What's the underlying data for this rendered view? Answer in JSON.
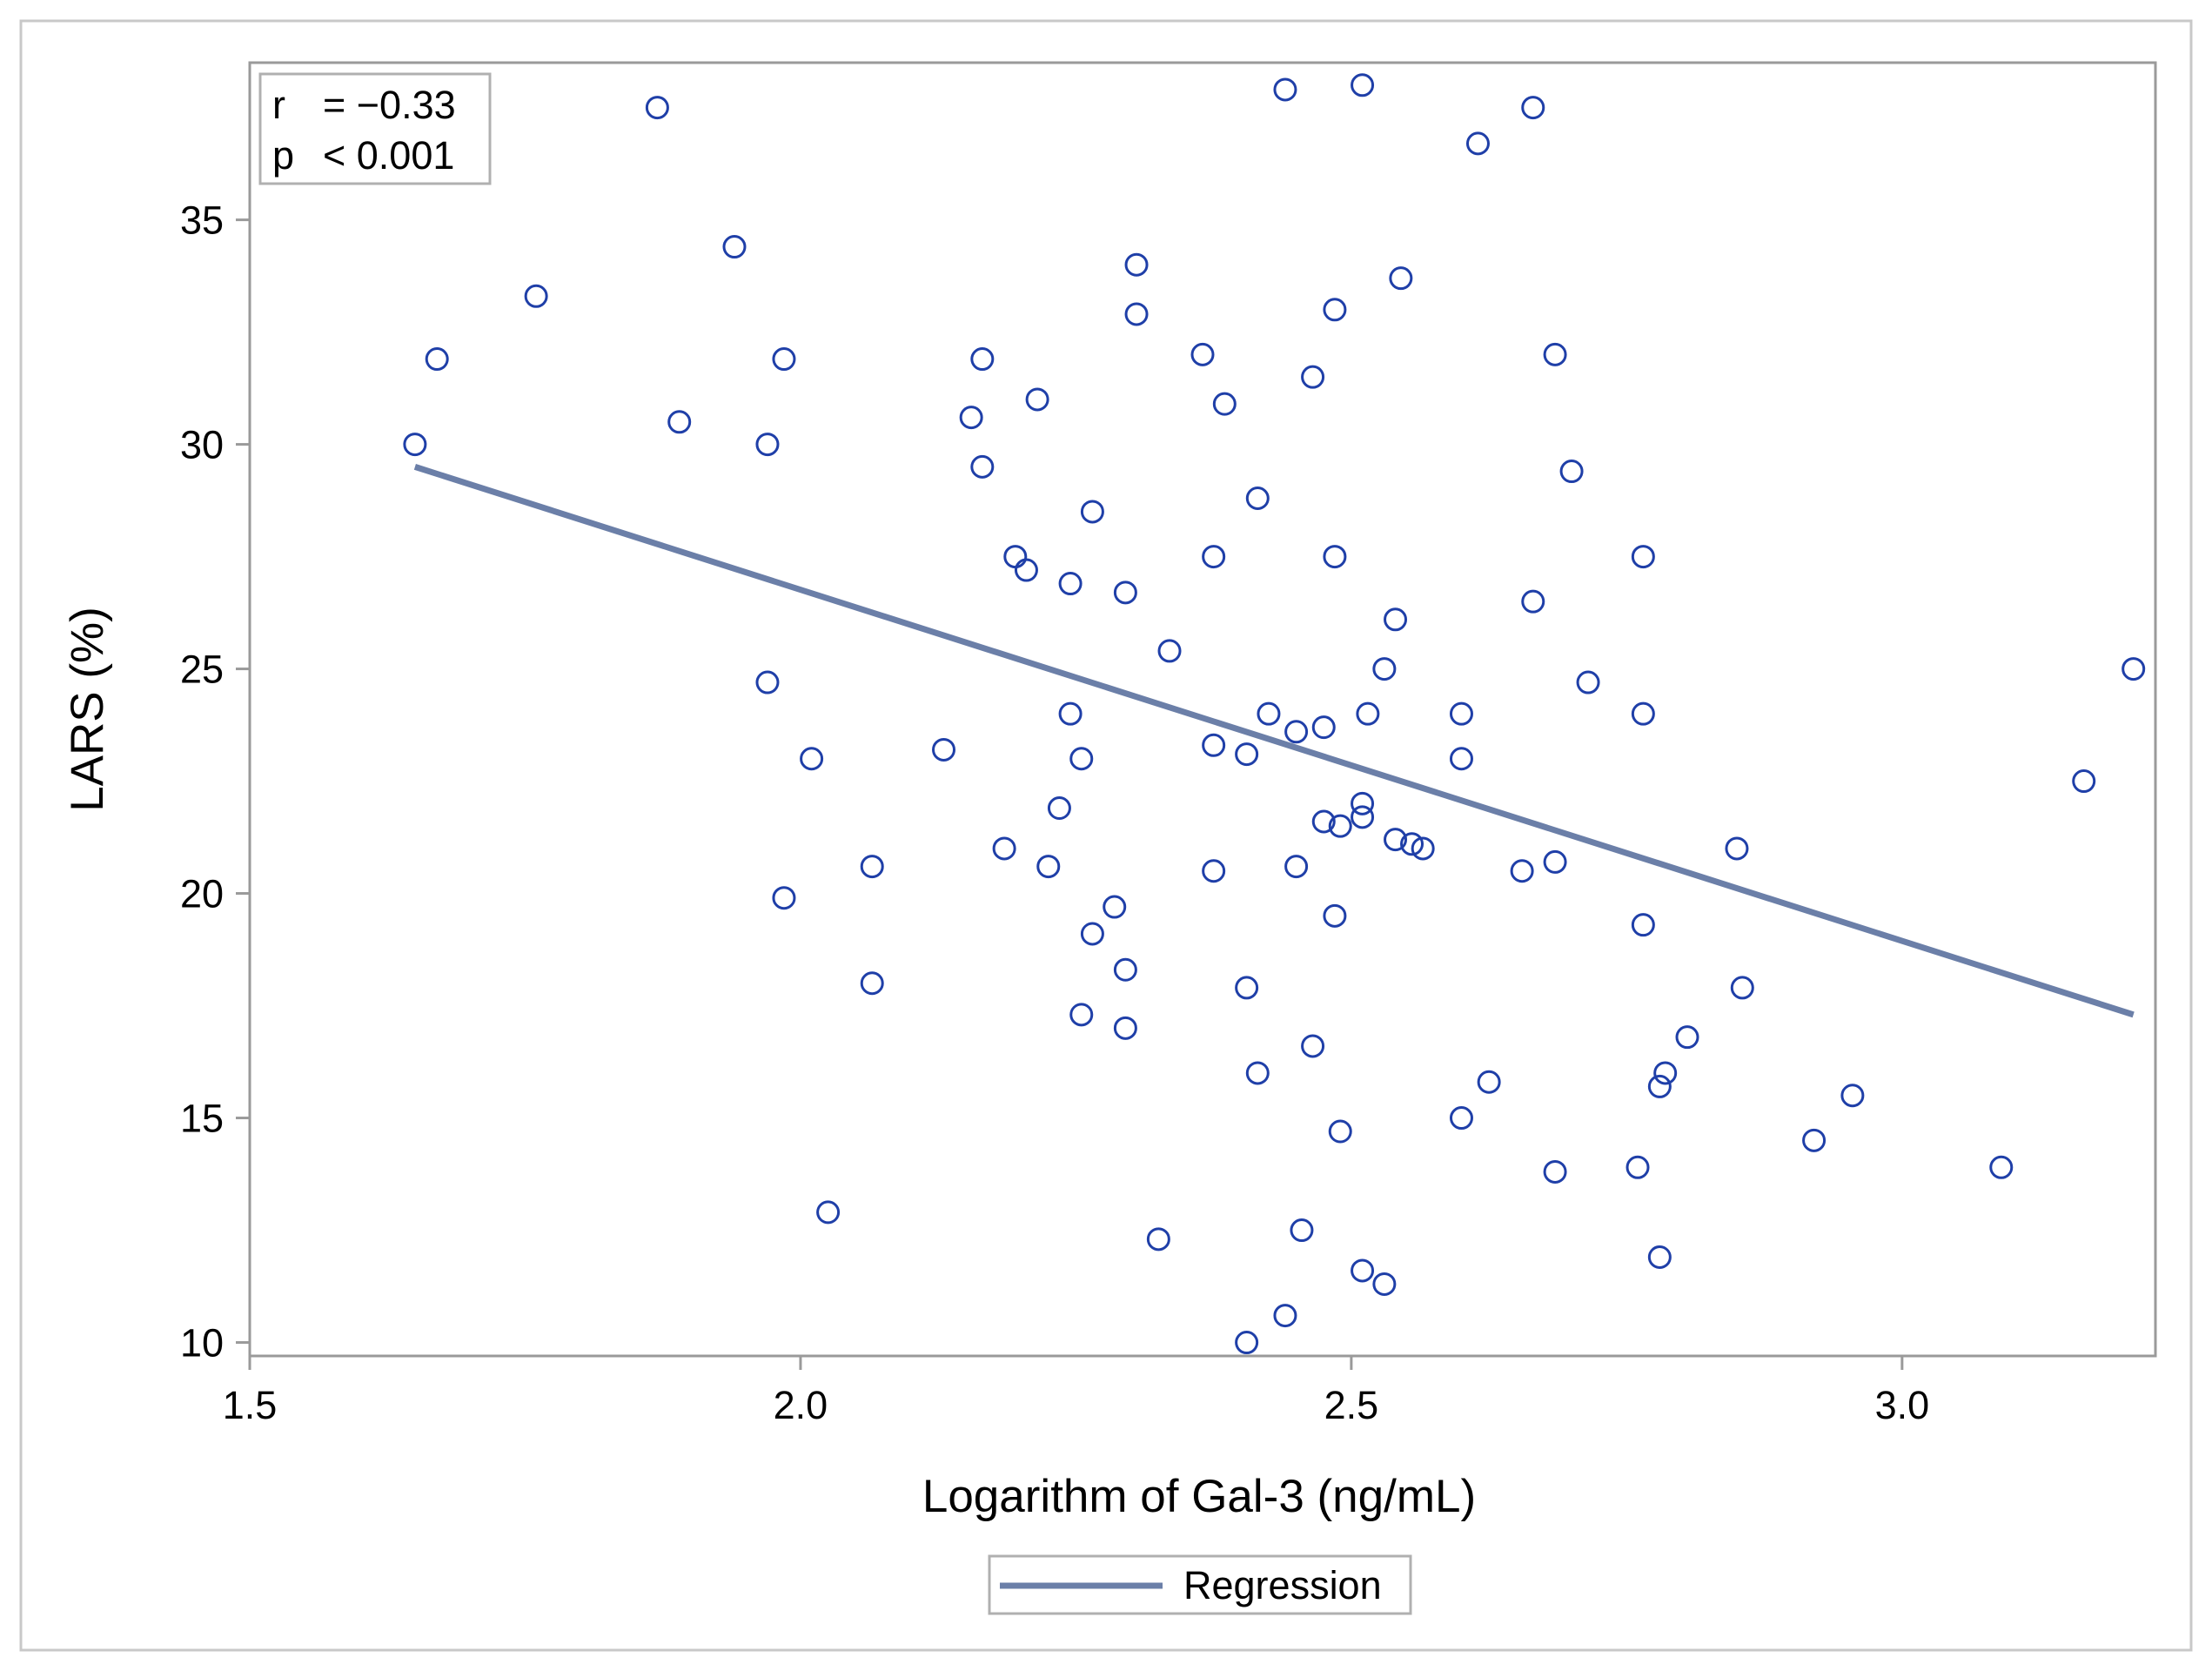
{
  "chart_data": {
    "type": "scatter",
    "title": "",
    "xlabel": "Logarithm of Gal-3 (ng/mL)",
    "ylabel": "LARS (%)",
    "xlim": [
      1.5,
      3.23
    ],
    "ylim": [
      9.7,
      38.5
    ],
    "xticks": [
      "1.5",
      "2.0",
      "2.5",
      "3.0"
    ],
    "yticks": [
      "10",
      "15",
      "20",
      "25",
      "30",
      "35"
    ],
    "grid": false,
    "stats": {
      "r_label": "r",
      "r_value": "= −0.33",
      "p_label": "p",
      "p_value": "< 0.001"
    },
    "legend": {
      "label": "Regression",
      "position": "bottom-center"
    },
    "colors": {
      "points": "#1f3fa8",
      "regression": "#6b7fa8",
      "frame": "#9a9a9a"
    },
    "regression": {
      "x": [
        1.65,
        3.21
      ],
      "y": [
        29.5,
        17.3
      ]
    },
    "points": [
      [
        1.65,
        30.0
      ],
      [
        1.67,
        31.9
      ],
      [
        1.76,
        33.3
      ],
      [
        1.87,
        37.5
      ],
      [
        1.89,
        30.5
      ],
      [
        1.94,
        34.4
      ],
      [
        1.97,
        30.0
      ],
      [
        1.97,
        24.7
      ],
      [
        1.985,
        31.9
      ],
      [
        1.985,
        19.9
      ],
      [
        2.01,
        23.0
      ],
      [
        2.025,
        12.9
      ],
      [
        2.065,
        20.6
      ],
      [
        2.065,
        18.0
      ],
      [
        2.13,
        23.2
      ],
      [
        2.155,
        30.6
      ],
      [
        2.165,
        31.9
      ],
      [
        2.165,
        29.5
      ],
      [
        2.185,
        21.0
      ],
      [
        2.195,
        27.5
      ],
      [
        2.205,
        27.2
      ],
      [
        2.215,
        31.0
      ],
      [
        2.225,
        20.6
      ],
      [
        2.235,
        21.9
      ],
      [
        2.245,
        26.9
      ],
      [
        2.245,
        24.0
      ],
      [
        2.255,
        23.0
      ],
      [
        2.255,
        17.3
      ],
      [
        2.265,
        28.5
      ],
      [
        2.265,
        19.1
      ],
      [
        2.285,
        19.7
      ],
      [
        2.295,
        26.7
      ],
      [
        2.295,
        18.3
      ],
      [
        2.295,
        17.0
      ],
      [
        2.305,
        34.0
      ],
      [
        2.305,
        32.9
      ],
      [
        2.325,
        12.3
      ],
      [
        2.335,
        25.4
      ],
      [
        2.365,
        32.0
      ],
      [
        2.375,
        27.5
      ],
      [
        2.375,
        23.3
      ],
      [
        2.375,
        20.5
      ],
      [
        2.385,
        30.9
      ],
      [
        2.405,
        23.1
      ],
      [
        2.405,
        17.9
      ],
      [
        2.405,
        10.0
      ],
      [
        2.415,
        28.8
      ],
      [
        2.415,
        16.0
      ],
      [
        2.425,
        24.0
      ],
      [
        2.44,
        37.9
      ],
      [
        2.44,
        10.6
      ],
      [
        2.45,
        23.6
      ],
      [
        2.45,
        20.6
      ],
      [
        2.455,
        12.5
      ],
      [
        2.465,
        31.5
      ],
      [
        2.465,
        16.6
      ],
      [
        2.475,
        23.7
      ],
      [
        2.475,
        21.6
      ],
      [
        2.485,
        33.0
      ],
      [
        2.485,
        27.5
      ],
      [
        2.485,
        19.5
      ],
      [
        2.49,
        21.5
      ],
      [
        2.49,
        14.7
      ],
      [
        2.51,
        38.0
      ],
      [
        2.51,
        22.0
      ],
      [
        2.51,
        21.7
      ],
      [
        2.51,
        11.6
      ],
      [
        2.515,
        24.0
      ],
      [
        2.53,
        25.0
      ],
      [
        2.53,
        11.3
      ],
      [
        2.54,
        26.1
      ],
      [
        2.54,
        21.2
      ],
      [
        2.545,
        33.7
      ],
      [
        2.555,
        21.1
      ],
      [
        2.565,
        21.0
      ],
      [
        2.6,
        24.0
      ],
      [
        2.6,
        23.0
      ],
      [
        2.6,
        15.0
      ],
      [
        2.615,
        36.7
      ],
      [
        2.625,
        15.8
      ],
      [
        2.655,
        20.5
      ],
      [
        2.665,
        37.5
      ],
      [
        2.665,
        26.5
      ],
      [
        2.685,
        32.0
      ],
      [
        2.685,
        20.7
      ],
      [
        2.685,
        13.8
      ],
      [
        2.7,
        29.4
      ],
      [
        2.715,
        24.7
      ],
      [
        2.76,
        13.9
      ],
      [
        2.765,
        27.5
      ],
      [
        2.765,
        24.0
      ],
      [
        2.765,
        19.3
      ],
      [
        2.78,
        15.7
      ],
      [
        2.78,
        11.9
      ],
      [
        2.785,
        16.0
      ],
      [
        2.805,
        16.8
      ],
      [
        2.85,
        21.0
      ],
      [
        2.855,
        17.9
      ],
      [
        2.92,
        14.5
      ],
      [
        2.955,
        15.5
      ],
      [
        3.09,
        13.9
      ],
      [
        3.165,
        22.5
      ],
      [
        3.21,
        25.0
      ]
    ]
  }
}
